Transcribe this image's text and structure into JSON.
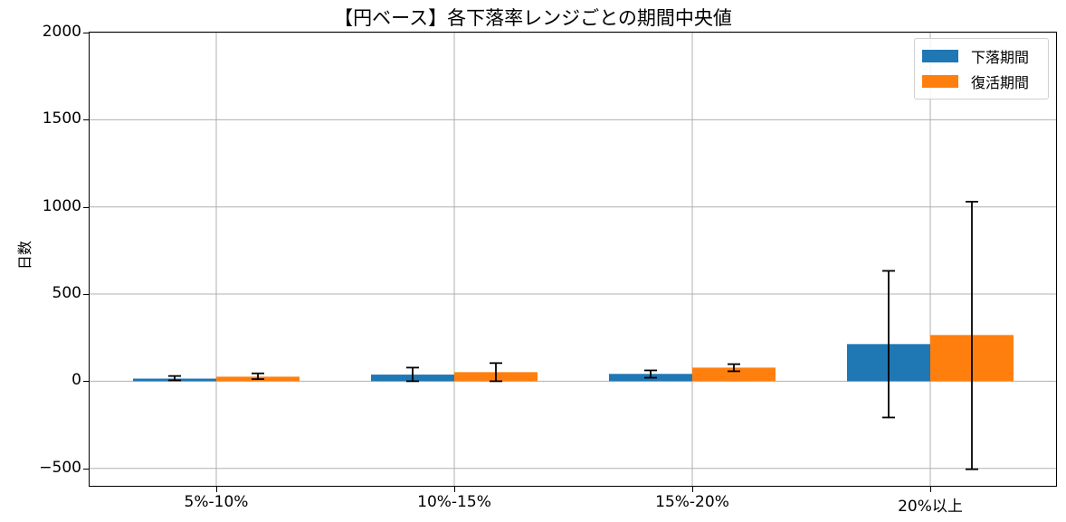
{
  "chart_data": {
    "type": "bar",
    "title": "【円ベース】各下落率レンジごとの期間中央値",
    "xlabel": "",
    "ylabel": "日数",
    "ylim": [
      -600,
      2000
    ],
    "yticks": [
      -500,
      0,
      500,
      1000,
      1500,
      2000
    ],
    "ytick_labels": [
      "−500",
      "0",
      "500",
      "1000",
      "1500",
      "2000"
    ],
    "grid": true,
    "legend_position": "upper right",
    "categories": [
      "5%-10%",
      "10%-15%",
      "15%-20%",
      "20%以上"
    ],
    "series": [
      {
        "name": "下落期間",
        "color": "#1f77b4",
        "values": [
          15,
          38,
          42,
          213
        ],
        "error_low": [
          5,
          0,
          20,
          -208
        ],
        "error_high": [
          30,
          78,
          62,
          633
        ]
      },
      {
        "name": "復活期間",
        "color": "#ff7f0e",
        "values": [
          26,
          52,
          78,
          265
        ],
        "error_low": [
          12,
          0,
          57,
          -505
        ],
        "error_high": [
          45,
          104,
          98,
          1030
        ]
      }
    ]
  }
}
